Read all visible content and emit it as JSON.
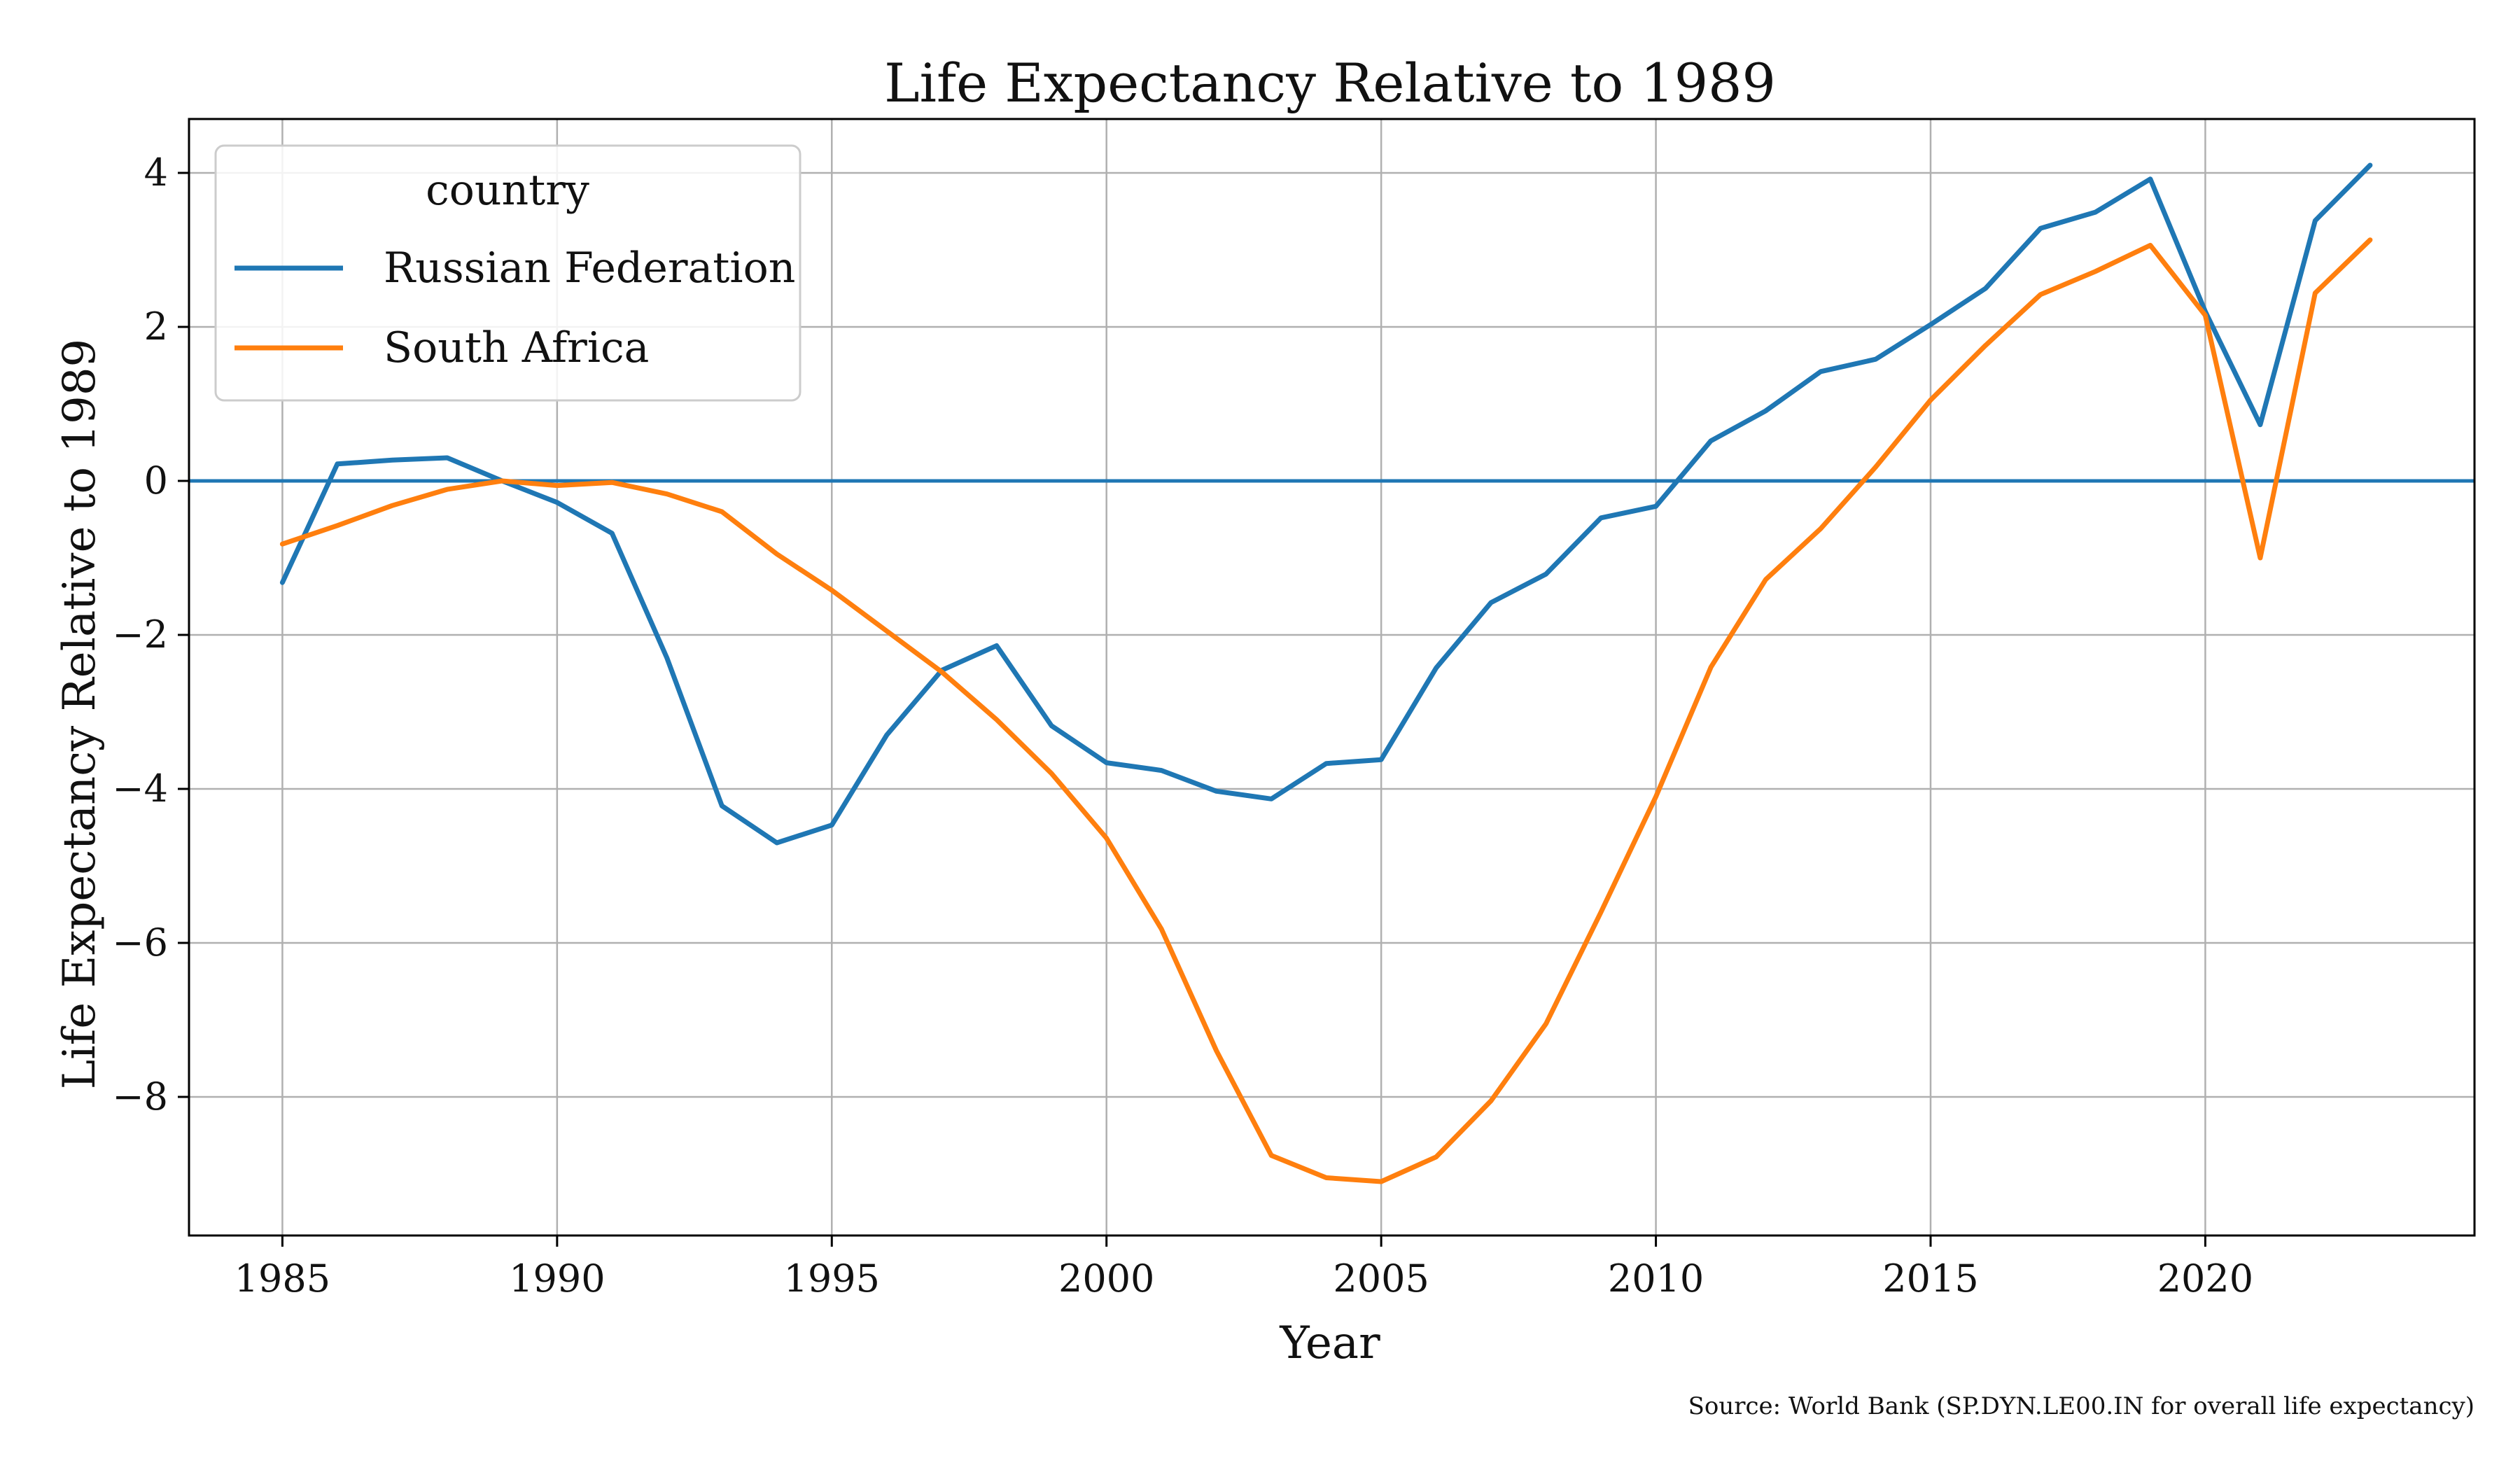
{
  "chart_data": {
    "type": "line",
    "title": "Life Expectancy Relative to 1989",
    "xlabel": "Year",
    "ylabel": "Life Expectancy Relative to 1989",
    "source": "Source: World Bank (SP.DYN.LE00.IN for overall life expectancy)",
    "xlim": [
      1983.3,
      2024.9
    ],
    "ylim": [
      -9.8,
      4.7
    ],
    "xticks": [
      1985,
      1990,
      1995,
      2000,
      2005,
      2010,
      2015,
      2020
    ],
    "yticks": [
      4,
      2,
      0,
      -2,
      -4,
      -6,
      -8
    ],
    "ytick_labels": [
      "4",
      "2",
      "0",
      "−2",
      "−4",
      "−6",
      "−8"
    ],
    "grid": true,
    "reference_line": {
      "y": 0,
      "color": "#1f77b4"
    },
    "legend": {
      "title": "country",
      "position": "top-left"
    },
    "x": [
      1985,
      1986,
      1987,
      1988,
      1989,
      1990,
      1991,
      1992,
      1993,
      1994,
      1995,
      1996,
      1997,
      1998,
      1999,
      2000,
      2001,
      2002,
      2003,
      2004,
      2005,
      2006,
      2007,
      2008,
      2009,
      2010,
      2011,
      2012,
      2013,
      2014,
      2015,
      2016,
      2017,
      2018,
      2019,
      2020,
      2021,
      2022,
      2023
    ],
    "series": [
      {
        "name": "Russian Federation",
        "color": "#1f77b4",
        "values": [
          -1.32,
          0.22,
          0.27,
          0.3,
          0.0,
          -0.28,
          -0.68,
          -2.3,
          -4.22,
          -4.7,
          -4.47,
          -3.3,
          -2.46,
          -2.14,
          -3.18,
          -3.66,
          -3.76,
          -4.03,
          -4.13,
          -3.67,
          -3.62,
          -2.43,
          -1.58,
          -1.21,
          -0.48,
          -0.33,
          0.52,
          0.91,
          1.42,
          1.58,
          2.03,
          2.5,
          3.28,
          3.49,
          3.92,
          2.2,
          0.73,
          3.38,
          4.1
        ]
      },
      {
        "name": "South Africa",
        "color": "#ff7f0e",
        "values": [
          -0.82,
          -0.58,
          -0.32,
          -0.11,
          0.0,
          -0.06,
          -0.02,
          -0.17,
          -0.4,
          -0.95,
          -1.42,
          -1.95,
          -2.48,
          -3.1,
          -3.8,
          -4.64,
          -5.82,
          -7.4,
          -8.76,
          -9.05,
          -9.1,
          -8.78,
          -8.05,
          -7.05,
          -5.6,
          -4.1,
          -2.42,
          -1.28,
          -0.62,
          0.18,
          1.05,
          1.76,
          2.42,
          2.72,
          3.06,
          2.15,
          -1.0,
          2.44,
          3.13
        ]
      }
    ]
  }
}
